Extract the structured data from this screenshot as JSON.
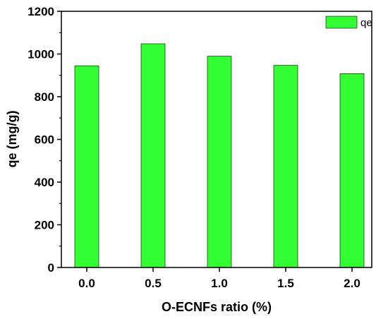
{
  "chart_data": {
    "type": "bar",
    "categories": [
      "0.0",
      "0.5",
      "1.0",
      "1.5",
      "2.0"
    ],
    "series": [
      {
        "name": "qe",
        "values": [
          945,
          1048,
          990,
          947,
          908
        ],
        "color": "#33ff33"
      }
    ],
    "xlabel": "O-ECNFs ratio (%)",
    "ylabel": "qe (mg/g)",
    "ylim": [
      0,
      1200
    ],
    "yticks": [
      "0",
      "200",
      "400",
      "600",
      "800",
      "1000",
      "1200"
    ],
    "legend_position": "top-right",
    "grid": false
  }
}
